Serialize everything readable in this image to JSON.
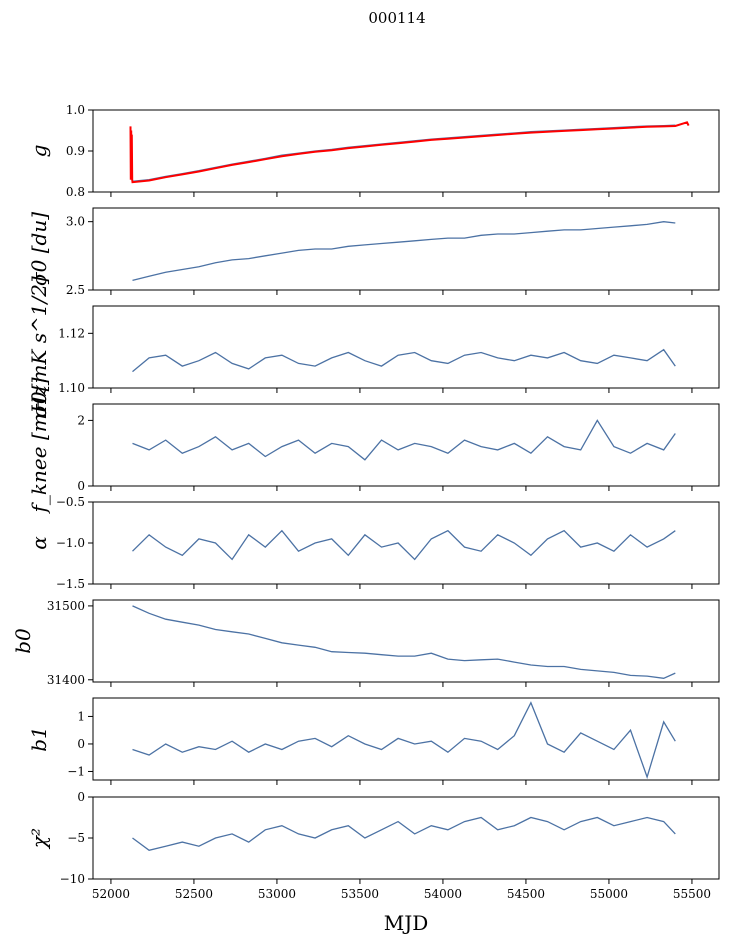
{
  "chart_data": {
    "type": "line",
    "title": "000114",
    "xlabel": "MJD",
    "xlim": [
      51892,
      55663
    ],
    "xticks": [
      52000,
      52500,
      53000,
      53500,
      54000,
      54500,
      55000,
      55500
    ],
    "x": [
      52130,
      52230,
      52330,
      52430,
      52530,
      52630,
      52730,
      52830,
      52930,
      53030,
      53130,
      53230,
      53330,
      53430,
      53530,
      53630,
      53730,
      53830,
      53930,
      54030,
      54130,
      54230,
      54330,
      54430,
      54530,
      54630,
      54730,
      54830,
      54930,
      55030,
      55130,
      55230,
      55330,
      55400
    ],
    "panels": [
      {
        "ylabel": "g",
        "ylim": [
          0.8,
          1.0
        ],
        "yticks": [
          0.8,
          0.9,
          1.0
        ],
        "ytick_labels": [
          "0.8",
          "0.9",
          "1.0"
        ],
        "series": [
          {
            "name": "g",
            "color": "#4c72a4",
            "y": [
              0.826,
              0.83,
              0.838,
              0.845,
              0.852,
              0.86,
              0.868,
              0.875,
              0.882,
              0.89,
              0.895,
              0.9,
              0.904,
              0.909,
              0.913,
              0.917,
              0.921,
              0.925,
              0.929,
              0.932,
              0.935,
              0.938,
              0.941,
              0.944,
              0.947,
              0.949,
              0.951,
              0.953,
              0.955,
              0.957,
              0.959,
              0.961,
              0.962,
              0.963
            ]
          },
          {
            "name": "g-fit",
            "color": "#ff0000",
            "x": [
              52118,
              52120,
              52122,
              52124,
              52126,
              52128,
              52130,
              52230,
              52330,
              52430,
              52530,
              52630,
              52730,
              52830,
              52930,
              53030,
              53130,
              53230,
              53330,
              53430,
              53530,
              53630,
              53730,
              53830,
              53930,
              54030,
              54130,
              54230,
              54330,
              54430,
              54530,
              54630,
              54730,
              54830,
              54930,
              55030,
              55130,
              55230,
              55330,
              55400,
              55470,
              55480
            ],
            "y": [
              0.96,
              0.83,
              0.95,
              0.83,
              0.94,
              0.83,
              0.824,
              0.828,
              0.836,
              0.843,
              0.85,
              0.858,
              0.866,
              0.873,
              0.88,
              0.887,
              0.893,
              0.898,
              0.902,
              0.907,
              0.911,
              0.915,
              0.919,
              0.923,
              0.927,
              0.93,
              0.933,
              0.936,
              0.939,
              0.942,
              0.945,
              0.947,
              0.949,
              0.951,
              0.953,
              0.955,
              0.957,
              0.959,
              0.96,
              0.961,
              0.97,
              0.962
            ]
          }
        ]
      },
      {
        "ylabel": "σ0 [du]",
        "ylim": [
          2.5,
          3.1
        ],
        "yticks": [
          2.5,
          3.0
        ],
        "ytick_labels": [
          "2.5",
          "3.0"
        ],
        "series": [
          {
            "name": "sigma0-du",
            "color": "#4c72a4",
            "y": [
              2.57,
              2.6,
              2.63,
              2.65,
              2.67,
              2.7,
              2.72,
              2.73,
              2.75,
              2.77,
              2.79,
              2.8,
              2.8,
              2.82,
              2.83,
              2.84,
              2.85,
              2.86,
              2.87,
              2.88,
              2.88,
              2.9,
              2.91,
              2.91,
              2.92,
              2.93,
              2.94,
              2.94,
              2.95,
              2.96,
              2.97,
              2.98,
              3.0,
              2.99
            ]
          }
        ]
      },
      {
        "ylabel": "σ0[mK s^1/2]",
        "ylim": [
          1.1,
          1.13
        ],
        "yticks": [
          1.1,
          1.12
        ],
        "ytick_labels": [
          "1.10",
          "1.12"
        ],
        "series": [
          {
            "name": "sigma0-mK",
            "color": "#4c72a4",
            "y": [
              1.106,
              1.111,
              1.112,
              1.108,
              1.11,
              1.113,
              1.109,
              1.107,
              1.111,
              1.112,
              1.109,
              1.108,
              1.111,
              1.113,
              1.11,
              1.108,
              1.112,
              1.113,
              1.11,
              1.109,
              1.112,
              1.113,
              1.111,
              1.11,
              1.112,
              1.111,
              1.113,
              1.11,
              1.109,
              1.112,
              1.111,
              1.11,
              1.114,
              1.108
            ]
          }
        ]
      },
      {
        "ylabel": "f_knee [mHz]",
        "ylim": [
          0,
          2.5
        ],
        "yticks": [
          0,
          2
        ],
        "ytick_labels": [
          "0",
          "2"
        ],
        "series": [
          {
            "name": "fknee",
            "color": "#4c72a4",
            "y": [
              1.3,
              1.1,
              1.4,
              1.0,
              1.2,
              1.5,
              1.1,
              1.3,
              0.9,
              1.2,
              1.4,
              1.0,
              1.3,
              1.2,
              0.8,
              1.4,
              1.1,
              1.3,
              1.2,
              1.0,
              1.4,
              1.2,
              1.1,
              1.3,
              1.0,
              1.5,
              1.2,
              1.1,
              2.0,
              1.2,
              1.0,
              1.3,
              1.1,
              1.6
            ]
          }
        ]
      },
      {
        "ylabel": "α",
        "ylim": [
          -1.5,
          -0.5
        ],
        "yticks": [
          -1.5,
          -1.0,
          -0.5
        ],
        "ytick_labels": [
          "−1.5",
          "−1.0",
          "−0.5"
        ],
        "series": [
          {
            "name": "alpha",
            "color": "#4c72a4",
            "y": [
              -1.1,
              -0.9,
              -1.05,
              -1.15,
              -0.95,
              -1.0,
              -1.2,
              -0.9,
              -1.05,
              -0.85,
              -1.1,
              -1.0,
              -0.95,
              -1.15,
              -0.9,
              -1.05,
              -1.0,
              -1.2,
              -0.95,
              -0.85,
              -1.05,
              -1.1,
              -0.9,
              -1.0,
              -1.15,
              -0.95,
              -0.85,
              -1.05,
              -1.0,
              -1.1,
              -0.9,
              -1.05,
              -0.95,
              -0.85
            ]
          }
        ]
      },
      {
        "ylabel": "b0",
        "ylim": [
          31397,
          31508
        ],
        "yticks": [
          31400,
          31500
        ],
        "ytick_labels": [
          "31400",
          "31500"
        ],
        "series": [
          {
            "name": "b0",
            "color": "#4c72a4",
            "y": [
              31500,
              31490,
              31482,
              31478,
              31474,
              31468,
              31465,
              31462,
              31456,
              31450,
              31447,
              31444,
              31438,
              31437,
              31436,
              31434,
              31432,
              31432,
              31436,
              31428,
              31426,
              31427,
              31428,
              31424,
              31420,
              31418,
              31418,
              31414,
              31412,
              31410,
              31406,
              31405,
              31402,
              31409
            ]
          }
        ]
      },
      {
        "ylabel": "b1",
        "ylim": [
          -1.31,
          1.67
        ],
        "yticks": [
          -1,
          0,
          1
        ],
        "ytick_labels": [
          "−1",
          "0",
          "1"
        ],
        "series": [
          {
            "name": "b1",
            "color": "#4c72a4",
            "y": [
              -0.2,
              -0.4,
              0.0,
              -0.3,
              -0.1,
              -0.2,
              0.1,
              -0.3,
              0.0,
              -0.2,
              0.1,
              0.2,
              -0.1,
              0.3,
              0.0,
              -0.2,
              0.2,
              0.0,
              0.1,
              -0.3,
              0.2,
              0.1,
              -0.2,
              0.3,
              1.5,
              0.0,
              -0.3,
              0.4,
              0.1,
              -0.2,
              0.5,
              -1.2,
              0.8,
              0.1
            ]
          }
        ]
      },
      {
        "ylabel": "χ²",
        "ylim": [
          -10,
          0
        ],
        "yticks": [
          -10,
          -5,
          0
        ],
        "ytick_labels": [
          "−10",
          "−5",
          "0"
        ],
        "series": [
          {
            "name": "chi2",
            "color": "#4c72a4",
            "y": [
              -5,
              -6.5,
              -6,
              -5.5,
              -6,
              -5,
              -4.5,
              -5.5,
              -4,
              -3.5,
              -4.5,
              -5,
              -4,
              -3.5,
              -5,
              -4,
              -3,
              -4.5,
              -3.5,
              -4,
              -3,
              -2.5,
              -4,
              -3.5,
              -2.5,
              -3,
              -4,
              -3,
              -2.5,
              -3.5,
              -3,
              -2.5,
              -3,
              -4.5
            ]
          }
        ]
      }
    ]
  }
}
